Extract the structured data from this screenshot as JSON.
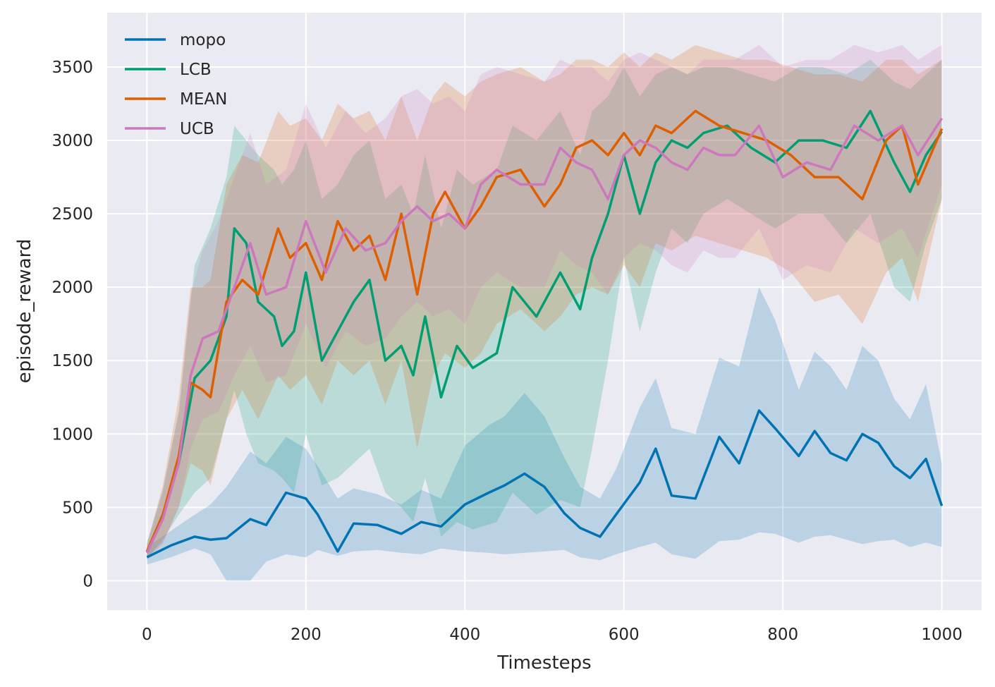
{
  "chart_data": {
    "type": "line",
    "title": "",
    "xlabel": "Timesteps",
    "ylabel": "episode_reward",
    "xlim": [
      -50,
      1050
    ],
    "ylim": [
      -200,
      3870
    ],
    "xticks": [
      0,
      200,
      400,
      600,
      800,
      1000
    ],
    "yticks": [
      0,
      500,
      1000,
      1500,
      2000,
      2500,
      3000,
      3500
    ],
    "grid": true,
    "legend_position": "top-left",
    "background": "#eaeaf2",
    "series": [
      {
        "name": "mopo",
        "color": "#0173b2",
        "x": [
          0,
          30,
          60,
          80,
          100,
          130,
          150,
          175,
          200,
          215,
          240,
          260,
          290,
          320,
          345,
          370,
          400,
          430,
          450,
          475,
          500,
          525,
          545,
          570,
          590,
          620,
          640,
          660,
          690,
          720,
          745,
          770,
          790,
          820,
          840,
          860,
          880,
          900,
          920,
          940,
          960,
          980,
          1000
        ],
        "y": [
          160,
          240,
          300,
          280,
          290,
          420,
          380,
          600,
          560,
          450,
          200,
          390,
          380,
          320,
          400,
          370,
          520,
          600,
          650,
          730,
          640,
          460,
          360,
          300,
          450,
          670,
          900,
          580,
          560,
          980,
          800,
          1160,
          1040,
          850,
          1020,
          870,
          820,
          1000,
          940,
          780,
          700,
          830,
          510
        ],
        "lower": [
          110,
          160,
          220,
          180,
          0,
          0,
          130,
          180,
          160,
          210,
          170,
          200,
          210,
          190,
          180,
          220,
          200,
          190,
          180,
          190,
          200,
          210,
          160,
          140,
          180,
          230,
          260,
          180,
          150,
          270,
          280,
          330,
          320,
          260,
          300,
          310,
          280,
          250,
          270,
          280,
          230,
          260,
          230
        ],
        "upper": [
          230,
          340,
          450,
          520,
          640,
          880,
          800,
          980,
          900,
          780,
          560,
          630,
          590,
          520,
          620,
          560,
          920,
          1060,
          1120,
          1280,
          1120,
          840,
          640,
          560,
          760,
          1180,
          1380,
          1040,
          1000,
          1520,
          1460,
          2000,
          1780,
          1300,
          1560,
          1460,
          1300,
          1600,
          1500,
          1240,
          1100,
          1340,
          800
        ]
      },
      {
        "name": "LCB",
        "color": "#029e73",
        "x": [
          0,
          20,
          40,
          60,
          80,
          100,
          110,
          125,
          140,
          160,
          170,
          185,
          200,
          220,
          240,
          260,
          280,
          300,
          320,
          335,
          350,
          370,
          390,
          410,
          440,
          460,
          490,
          520,
          545,
          560,
          580,
          600,
          620,
          640,
          660,
          680,
          700,
          730,
          760,
          790,
          820,
          850,
          880,
          910,
          940,
          960,
          980,
          1000
        ],
        "y": [
          200,
          450,
          800,
          1380,
          1500,
          1800,
          2400,
          2300,
          1900,
          1800,
          1600,
          1700,
          2100,
          1500,
          1700,
          1900,
          2050,
          1500,
          1600,
          1400,
          1800,
          1250,
          1600,
          1450,
          1550,
          2000,
          1800,
          2100,
          1850,
          2200,
          2500,
          2900,
          2500,
          2850,
          3000,
          2950,
          3050,
          3100,
          2950,
          2850,
          3000,
          3000,
          2950,
          3200,
          2850,
          2650,
          2900,
          3060
        ],
        "lower": [
          150,
          280,
          450,
          600,
          700,
          1100,
          1300,
          1000,
          800,
          750,
          700,
          600,
          1000,
          650,
          700,
          800,
          900,
          600,
          500,
          400,
          700,
          300,
          400,
          350,
          400,
          600,
          450,
          550,
          500,
          900,
          1500,
          2200,
          1700,
          2100,
          2400,
          2300,
          2500,
          2600,
          2500,
          2400,
          2500,
          2500,
          2300,
          2500,
          2000,
          1900,
          2300,
          2600
        ],
        "upper": [
          260,
          620,
          1150,
          2150,
          2400,
          2750,
          3100,
          3000,
          2900,
          2800,
          2700,
          2800,
          3000,
          2600,
          2700,
          2900,
          3000,
          2600,
          2700,
          2500,
          2900,
          2400,
          2800,
          2700,
          2800,
          3100,
          3000,
          3200,
          2900,
          3200,
          3300,
          3500,
          3300,
          3450,
          3500,
          3450,
          3500,
          3500,
          3450,
          3400,
          3500,
          3500,
          3450,
          3550,
          3400,
          3350,
          3450,
          3550
        ]
      },
      {
        "name": "MEAN",
        "color": "#de5f00",
        "x": [
          0,
          20,
          40,
          55,
          70,
          80,
          100,
          120,
          140,
          165,
          180,
          200,
          220,
          240,
          260,
          280,
          300,
          320,
          340,
          360,
          375,
          400,
          420,
          440,
          470,
          500,
          520,
          540,
          560,
          580,
          600,
          620,
          640,
          660,
          690,
          720,
          750,
          780,
          810,
          840,
          870,
          900,
          930,
          950,
          970,
          1000
        ],
        "y": [
          200,
          450,
          850,
          1350,
          1300,
          1250,
          1900,
          2050,
          1950,
          2400,
          2200,
          2300,
          2050,
          2450,
          2250,
          2350,
          2050,
          2500,
          1950,
          2500,
          2650,
          2400,
          2550,
          2750,
          2800,
          2550,
          2700,
          2950,
          3000,
          2900,
          3050,
          2900,
          3100,
          3050,
          3200,
          3100,
          3050,
          3000,
          2900,
          2750,
          2750,
          2600,
          3000,
          3100,
          2700,
          3080
        ],
        "lower": [
          160,
          260,
          500,
          800,
          750,
          650,
          1100,
          1300,
          1100,
          1400,
          1300,
          1400,
          1200,
          1500,
          1400,
          1500,
          1200,
          1500,
          900,
          1400,
          1550,
          1450,
          1550,
          1750,
          1850,
          1700,
          1800,
          1950,
          2000,
          1950,
          2150,
          2000,
          2300,
          2250,
          2350,
          2300,
          2250,
          2200,
          2100,
          1900,
          1950,
          1750,
          2100,
          2200,
          1900,
          2600
        ],
        "upper": [
          250,
          650,
          1250,
          2000,
          2000,
          2050,
          2700,
          2900,
          2850,
          3200,
          3100,
          3150,
          3000,
          3250,
          3150,
          3200,
          3000,
          3300,
          3000,
          3300,
          3400,
          3300,
          3400,
          3450,
          3500,
          3400,
          3450,
          3550,
          3550,
          3500,
          3600,
          3500,
          3600,
          3550,
          3650,
          3600,
          3550,
          3550,
          3500,
          3450,
          3450,
          3400,
          3550,
          3550,
          3450,
          3550
        ]
      },
      {
        "name": "UCB",
        "color": "#cc78bc",
        "x": [
          0,
          20,
          40,
          55,
          70,
          90,
          110,
          130,
          150,
          175,
          200,
          225,
          250,
          275,
          300,
          320,
          340,
          360,
          380,
          400,
          420,
          440,
          470,
          500,
          520,
          540,
          560,
          580,
          600,
          620,
          640,
          660,
          680,
          700,
          720,
          740,
          770,
          800,
          830,
          860,
          890,
          920,
          950,
          970,
          1000
        ],
        "y": [
          190,
          420,
          800,
          1400,
          1650,
          1700,
          2000,
          2300,
          1950,
          2000,
          2450,
          2100,
          2400,
          2250,
          2300,
          2450,
          2550,
          2450,
          2500,
          2400,
          2700,
          2800,
          2700,
          2700,
          2950,
          2850,
          2800,
          2600,
          2900,
          3000,
          2950,
          2850,
          2800,
          2950,
          2900,
          2900,
          3100,
          2750,
          2850,
          2800,
          3100,
          3000,
          3100,
          2900,
          3150
        ],
        "lower": [
          140,
          250,
          500,
          900,
          1100,
          1150,
          1400,
          1600,
          1350,
          1400,
          1750,
          1450,
          1700,
          1600,
          1650,
          1800,
          1900,
          1800,
          1850,
          1750,
          2000,
          2100,
          2000,
          2000,
          2250,
          2150,
          2100,
          1950,
          2200,
          2300,
          2250,
          2150,
          2100,
          2250,
          2200,
          2200,
          2400,
          2050,
          2150,
          2100,
          2400,
          2300,
          2400,
          2200,
          2700
        ],
        "upper": [
          250,
          600,
          1150,
          1950,
          2250,
          2450,
          2750,
          3050,
          2700,
          2800,
          3250,
          2950,
          3200,
          3050,
          3150,
          3300,
          3350,
          3250,
          3300,
          3200,
          3450,
          3500,
          3450,
          3400,
          3550,
          3500,
          3500,
          3400,
          3550,
          3600,
          3550,
          3500,
          3450,
          3550,
          3550,
          3550,
          3650,
          3500,
          3550,
          3550,
          3650,
          3600,
          3650,
          3550,
          3650
        ]
      }
    ]
  }
}
